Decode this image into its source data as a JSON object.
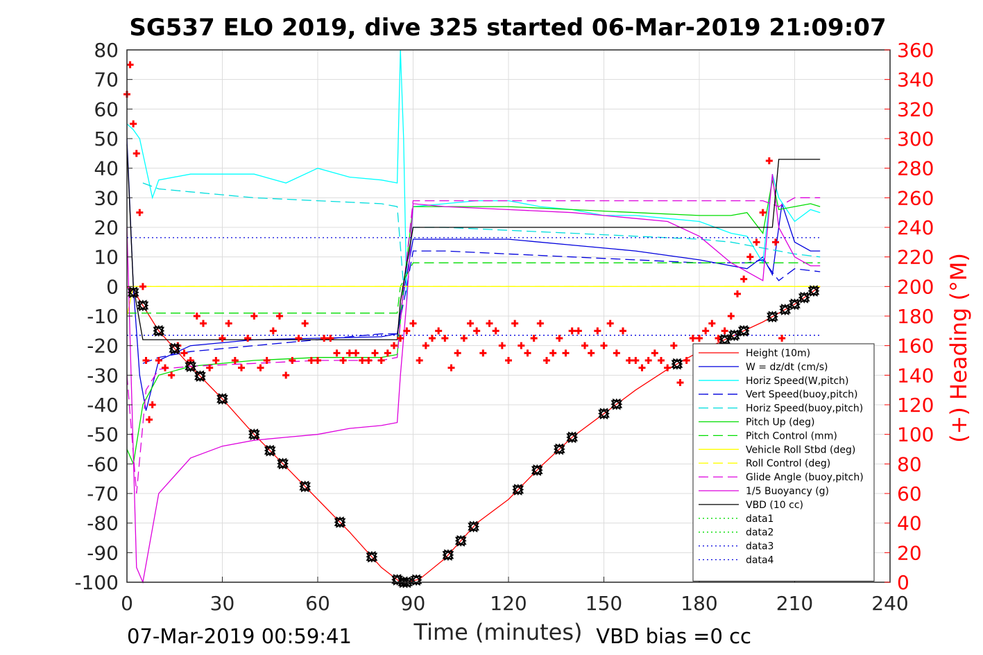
{
  "chart_data": {
    "type": "line",
    "title": "SG537 ELO 2019, dive 325 started 06-Mar-2019 21:09:07",
    "xlabel": "Time (minutes)",
    "ylabel_right": "(+) Heading (°M)",
    "footer_left": "07-Mar-2019 00:59:41",
    "footer_right": "VBD bias =0 cc",
    "xlim": [
      0,
      240
    ],
    "ylim": [
      -100,
      80
    ],
    "ylim_right": [
      0,
      360
    ],
    "x_ticks": [
      "0",
      "30",
      "60",
      "90",
      "120",
      "150",
      "180",
      "210",
      "240"
    ],
    "y_ticks": [
      "-100",
      "-90",
      "-80",
      "-70",
      "-60",
      "-50",
      "-40",
      "-30",
      "-20",
      "-10",
      "0",
      "10",
      "20",
      "30",
      "40",
      "50",
      "60",
      "70",
      "80"
    ],
    "y_ticks_right": [
      "0",
      "20",
      "40",
      "60",
      "80",
      "100",
      "120",
      "140",
      "160",
      "180",
      "200",
      "220",
      "240",
      "260",
      "280",
      "300",
      "320",
      "340",
      "360"
    ],
    "grid": true,
    "legend_position": "bottom-right",
    "series": [
      {
        "name": "Height (10m)",
        "color": "#ff0000",
        "style": "solid",
        "x": [
          0,
          3,
          10,
          20,
          30,
          40,
          50,
          60,
          70,
          80,
          86,
          88,
          92,
          100,
          110,
          120,
          130,
          140,
          150,
          160,
          170,
          180,
          190,
          200,
          210,
          218
        ],
        "y": [
          0,
          -3,
          -15,
          -27,
          -38,
          -50,
          -61,
          -72,
          -83,
          -95,
          -100,
          -100,
          -99,
          -92,
          -80,
          -72,
          -61,
          -51,
          -43,
          -35,
          -28,
          -22,
          -17,
          -12,
          -6,
          0
        ]
      },
      {
        "name": "W = dz/dt (cm/s)",
        "color": "#0000dd",
        "style": "solid",
        "x": [
          0,
          2,
          4,
          6,
          10,
          20,
          40,
          60,
          80,
          85,
          87,
          90,
          100,
          120,
          140,
          160,
          180,
          195,
          200,
          203,
          206,
          210,
          215,
          218
        ],
        "y": [
          50,
          0,
          -30,
          -42,
          -25,
          -20,
          -18,
          -17.5,
          -17,
          -16,
          -2,
          16,
          16,
          16,
          14,
          12,
          9,
          6,
          10,
          4,
          28,
          15,
          12,
          12
        ]
      },
      {
        "name": "Horiz Speed(W,pitch)",
        "color": "#00ffff",
        "style": "solid",
        "x": [
          0,
          2,
          4,
          8,
          10,
          20,
          40,
          50,
          60,
          70,
          80,
          85,
          86,
          87,
          88,
          90,
          100,
          110,
          120,
          130,
          140,
          150,
          160,
          170,
          180,
          190,
          195,
          200,
          203,
          205,
          210,
          215,
          218
        ],
        "y": [
          55,
          53,
          50,
          30,
          36,
          38,
          38,
          35,
          40,
          37,
          36,
          35,
          80,
          50,
          -5,
          27,
          28,
          29,
          29,
          27,
          26,
          24,
          24,
          23,
          22,
          18,
          17,
          8,
          38,
          30,
          22,
          26,
          25
        ]
      },
      {
        "name": "Vert Speed(buoy,pitch)",
        "color": "#0000dd",
        "style": "dashed",
        "x": [
          5,
          10,
          20,
          40,
          60,
          80,
          85,
          88,
          90,
          100,
          120,
          140,
          160,
          180,
          195,
          200,
          205,
          210,
          218
        ],
        "y": [
          -26,
          -24,
          -22,
          -20,
          -18,
          -16,
          -16,
          0,
          12,
          12,
          11,
          10,
          9,
          8,
          8,
          9,
          2,
          6,
          5
        ]
      },
      {
        "name": "Horiz Speed(buoy,pitch)",
        "color": "#00dddd",
        "style": "dashed",
        "x": [
          5,
          10,
          20,
          40,
          60,
          80,
          85,
          87,
          90,
          100,
          120,
          140,
          160,
          180,
          190,
          195,
          200,
          205,
          210,
          218
        ],
        "y": [
          35,
          33,
          32,
          30,
          29,
          28,
          27,
          0,
          20,
          20,
          19,
          18,
          17,
          16,
          15,
          14,
          13,
          12,
          11,
          10
        ]
      },
      {
        "name": "Pitch Up (deg)",
        "color": "#00dd00",
        "style": "solid",
        "x": [
          0,
          2,
          5,
          10,
          20,
          40,
          60,
          80,
          85,
          87,
          90,
          100,
          120,
          140,
          160,
          180,
          190,
          195,
          200,
          203,
          205,
          210,
          215,
          218
        ],
        "y": [
          -55,
          -60,
          -40,
          -30,
          -27,
          -25,
          -24,
          -24,
          -23,
          0,
          27,
          27,
          27,
          26,
          25,
          24,
          24,
          25,
          18,
          36,
          26,
          27,
          28,
          27
        ]
      },
      {
        "name": "Pitch Control (mm)",
        "color": "#00dd00",
        "style": "dashed",
        "x": [
          0,
          5,
          30,
          60,
          85,
          86,
          90,
          120,
          150,
          180,
          200,
          218
        ],
        "y": [
          -9,
          -9,
          -9,
          -9,
          -9,
          0,
          8,
          8,
          8,
          8,
          8,
          8
        ]
      },
      {
        "name": "Vehicle Roll Stbd (deg)",
        "color": "#ffff00",
        "style": "solid",
        "x": [
          0,
          2,
          5,
          10,
          30,
          60,
          85,
          86,
          90,
          120,
          150,
          180,
          200,
          210,
          218
        ],
        "y": [
          -10,
          0,
          0,
          0,
          0,
          0,
          0,
          0,
          0,
          0,
          0,
          0,
          0,
          0,
          0
        ]
      },
      {
        "name": "Roll Control (deg)",
        "color": "#ffff00",
        "style": "dashed",
        "x": [
          0,
          5,
          30,
          60,
          85,
          90,
          120,
          150,
          180,
          200,
          210,
          218
        ],
        "y": [
          0,
          0,
          0,
          0,
          0,
          0,
          0,
          0,
          0,
          0,
          0,
          0
        ]
      },
      {
        "name": "Glide Angle (buoy,pitch)",
        "color": "#dd00dd",
        "style": "dashed",
        "x": [
          0,
          3,
          6,
          10,
          20,
          40,
          60,
          80,
          85,
          87,
          90,
          100,
          120,
          140,
          160,
          180,
          200,
          205,
          210,
          218
        ],
        "y": [
          -30,
          -70,
          -35,
          -28,
          -27,
          -26,
          -25,
          -25,
          -24,
          0,
          29,
          29,
          29,
          29,
          29,
          29,
          29,
          27,
          30,
          30
        ]
      },
      {
        "name": "1/5 Buoyancy (g)",
        "color": "#dd00dd",
        "style": "solid",
        "x": [
          0,
          3,
          5,
          10,
          20,
          30,
          40,
          50,
          60,
          70,
          80,
          85,
          86,
          88,
          90,
          100,
          120,
          140,
          160,
          170,
          180,
          190,
          200,
          203,
          205,
          210,
          215,
          218
        ],
        "y": [
          20,
          -95,
          -100,
          -70,
          -58,
          -54,
          -52,
          -51,
          -50,
          -48,
          -47,
          -46,
          -30,
          -5,
          28,
          27,
          26,
          25,
          23,
          22,
          17,
          8,
          2,
          38,
          20,
          10,
          7,
          7
        ]
      },
      {
        "name": "VBD (10 cc)",
        "color": "#000000",
        "style": "solid",
        "x": [
          0,
          2,
          5,
          10,
          30,
          60,
          85,
          86,
          90,
          100,
          120,
          150,
          180,
          200,
          203,
          205,
          218
        ],
        "y": [
          48,
          0,
          -18,
          -18,
          -18,
          -18,
          -18,
          -5,
          20,
          20,
          20,
          20,
          20,
          20,
          20,
          43,
          43
        ]
      },
      {
        "name": "data1",
        "color": "#00dd00",
        "style": "dotted",
        "x": [],
        "y": []
      },
      {
        "name": "data2",
        "color": "#00dd00",
        "style": "dotted",
        "x": [],
        "y": []
      },
      {
        "name": "data3",
        "color": "#0000dd",
        "style": "dotted",
        "x": [
          0,
          218
        ],
        "y": [
          16.5,
          16.5
        ]
      },
      {
        "name": "data4",
        "color": "#0000dd",
        "style": "dotted",
        "x": [
          0,
          218
        ],
        "y": [
          -16.5,
          -16.5
        ]
      }
    ],
    "heading_series": {
      "axis": "right",
      "color": "#ff0000",
      "marker": "+",
      "x": [
        0,
        1,
        2,
        3,
        4,
        5,
        6,
        7,
        8,
        10,
        12,
        14,
        16,
        18,
        20,
        22,
        24,
        26,
        28,
        30,
        32,
        34,
        36,
        38,
        40,
        42,
        44,
        46,
        48,
        50,
        52,
        54,
        56,
        58,
        60,
        62,
        64,
        66,
        68,
        70,
        72,
        74,
        76,
        78,
        80,
        82,
        84,
        86,
        88,
        90,
        92,
        94,
        96,
        98,
        100,
        102,
        104,
        106,
        108,
        110,
        112,
        114,
        116,
        118,
        120,
        122,
        124,
        126,
        128,
        130,
        132,
        134,
        136,
        138,
        140,
        142,
        144,
        146,
        148,
        150,
        152,
        154,
        156,
        158,
        160,
        162,
        164,
        166,
        168,
        170,
        172,
        174,
        176,
        178,
        180,
        182,
        184,
        186,
        188,
        190,
        192,
        194,
        196,
        198,
        200,
        202,
        204,
        206
      ],
      "y": [
        330,
        350,
        310,
        290,
        250,
        200,
        150,
        110,
        120,
        150,
        145,
        140,
        160,
        155,
        150,
        180,
        175,
        145,
        150,
        165,
        175,
        150,
        145,
        165,
        180,
        145,
        150,
        170,
        180,
        140,
        150,
        165,
        175,
        150,
        150,
        165,
        165,
        155,
        150,
        155,
        155,
        150,
        150,
        155,
        150,
        155,
        160,
        165,
        170,
        175,
        150,
        160,
        165,
        170,
        165,
        145,
        155,
        165,
        175,
        170,
        155,
        175,
        170,
        160,
        150,
        175,
        160,
        155,
        165,
        175,
        150,
        155,
        165,
        155,
        170,
        170,
        160,
        155,
        170,
        160,
        175,
        155,
        170,
        150,
        150,
        145,
        150,
        155,
        150,
        145,
        160,
        135,
        150,
        165,
        165,
        170,
        175,
        165,
        170,
        180,
        195,
        205,
        220,
        230,
        250,
        285,
        230,
        165
      ]
    },
    "depth_markers": {
      "markers": [
        "^",
        ">",
        "<",
        "v"
      ],
      "x": [
        2,
        5,
        10,
        15,
        20,
        23,
        30,
        40,
        45,
        49,
        56,
        67,
        77,
        85,
        87,
        88,
        91,
        101,
        105,
        109,
        123,
        129,
        136,
        140,
        150,
        154,
        173,
        188,
        191,
        194,
        203,
        207,
        210,
        213,
        216
      ]
    }
  }
}
